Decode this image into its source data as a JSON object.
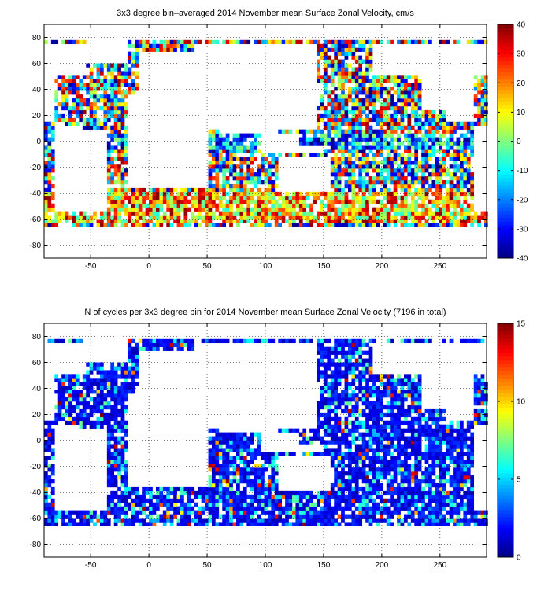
{
  "chart_data": [
    {
      "type": "heatmap",
      "title": "3x3 degree bin–averaged 2014 November mean Surface Zonal Velocity, cm/s",
      "xlim": [
        -90,
        290
      ],
      "ylim": [
        -90,
        90
      ],
      "x_ticks": [
        -50,
        0,
        50,
        100,
        150,
        200,
        250
      ],
      "y_ticks": [
        80,
        60,
        40,
        20,
        0,
        -20,
        -40,
        -60,
        -80
      ],
      "colorbar": {
        "min": -40,
        "max": 40,
        "ticks": [
          40,
          30,
          20,
          10,
          0,
          -10,
          -20,
          -30,
          -40
        ],
        "colormap": "jet"
      },
      "bin_size_deg": 3,
      "grid": true
    },
    {
      "type": "heatmap",
      "title": "N of cycles per 3x3 degree bin for 2014 November mean Surface Zonal Velocity (7196 in total)",
      "xlim": [
        -90,
        290
      ],
      "ylim": [
        -90,
        90
      ],
      "x_ticks": [
        -50,
        0,
        50,
        100,
        150,
        200,
        250
      ],
      "y_ticks": [
        80,
        60,
        40,
        20,
        0,
        -20,
        -40,
        -60,
        -80
      ],
      "colorbar": {
        "min": 0,
        "max": 15,
        "ticks": [
          15,
          10,
          5,
          0
        ],
        "colormap": "jet"
      },
      "bin_size_deg": 3,
      "grid": true
    }
  ]
}
